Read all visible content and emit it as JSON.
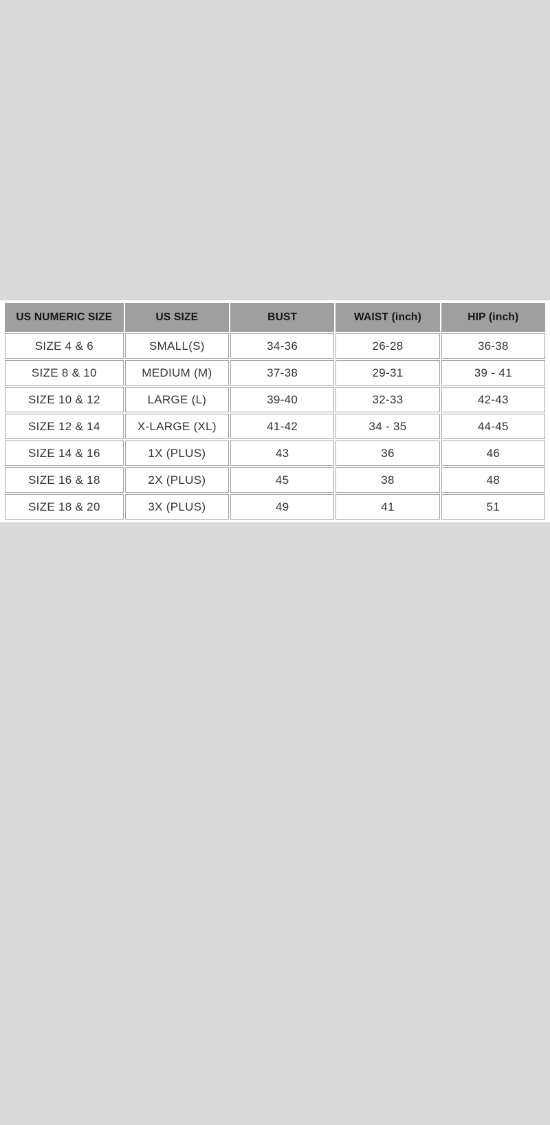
{
  "page": {
    "background_color": "#d9d9d9",
    "band_background_color": "#ffffff"
  },
  "colors": {
    "header_cell_background": "#9f9f9f",
    "header_text": "#151515",
    "cell_border": "#a2a2a2",
    "cell_text": "#333333"
  },
  "chart_data": {
    "type": "table",
    "title": "",
    "columns": [
      "US NUMERIC SIZE",
      "US SIZE",
      "BUST",
      "WAIST (inch)",
      "HIP (inch)"
    ],
    "rows": [
      [
        "SIZE 4 & 6",
        "SMALL(S)",
        "34-36",
        "26-28",
        "36-38"
      ],
      [
        "SIZE 8 & 10",
        "MEDIUM (M)",
        "37-38",
        "29-31",
        "39 - 41"
      ],
      [
        "SIZE 10 & 12",
        "LARGE (L)",
        "39-40",
        "32-33",
        "42-43"
      ],
      [
        "SIZE 12 & 14",
        "X-LARGE (XL)",
        "41-42",
        "34 - 35",
        "44-45"
      ],
      [
        "SIZE 14 & 16",
        "1X (PLUS)",
        "43",
        "36",
        "46"
      ],
      [
        "SIZE 16 & 18",
        "2X (PLUS)",
        "45",
        "38",
        "48"
      ],
      [
        "SIZE 18 & 20",
        "3X (PLUS)",
        "49",
        "41",
        "51"
      ]
    ]
  }
}
